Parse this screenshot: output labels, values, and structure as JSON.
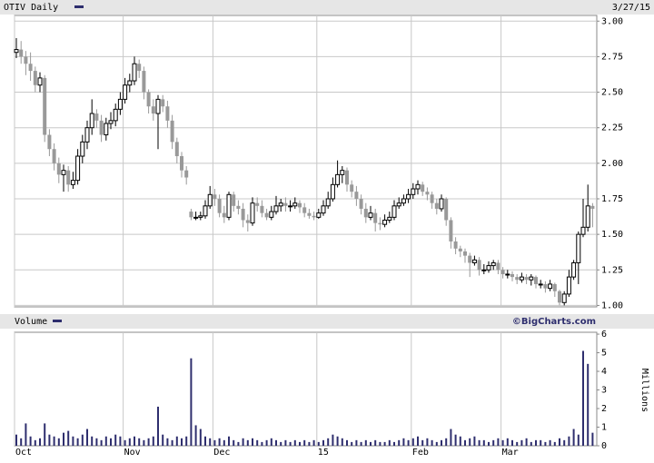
{
  "chart_data": [
    {
      "type": "candlestick",
      "title": "OTIV Daily",
      "date": "3/27/15",
      "open": [
        2.78,
        2.8,
        2.75,
        2.7,
        2.65,
        2.55,
        2.6,
        2.2,
        2.1,
        2.0,
        1.92,
        1.95,
        1.85,
        1.88,
        2.05,
        2.15,
        2.25,
        2.35,
        2.3,
        2.2,
        2.28,
        2.3,
        2.38,
        2.45,
        2.55,
        2.58,
        2.7,
        2.65,
        2.5,
        2.4,
        2.35,
        2.45,
        2.4,
        2.3,
        2.15,
        2.05,
        1.95,
        1.66,
        1.62,
        1.62,
        1.63,
        1.7,
        1.78,
        1.75,
        1.65,
        1.62,
        1.78,
        1.7,
        1.68,
        1.6,
        1.58,
        1.72,
        1.7,
        1.65,
        1.62,
        1.66,
        1.7,
        1.72,
        1.7,
        1.7,
        1.72,
        1.69,
        1.65,
        1.63,
        1.62,
        1.65,
        1.7,
        1.75,
        1.85,
        1.92,
        1.95,
        1.85,
        1.8,
        1.75,
        1.68,
        1.62,
        1.65,
        1.58,
        1.57,
        1.6,
        1.62,
        1.7,
        1.72,
        1.75,
        1.78,
        1.82,
        1.85,
        1.8,
        1.78,
        1.72,
        1.68,
        1.75,
        1.6,
        1.45,
        1.4,
        1.38,
        1.35,
        1.3,
        1.32,
        1.25,
        1.25,
        1.28,
        1.3,
        1.25,
        1.22,
        1.22,
        1.2,
        1.18,
        1.2,
        1.18,
        1.2,
        1.15,
        1.15,
        1.12,
        1.15,
        1.1,
        1.02,
        1.08,
        1.2,
        1.3,
        1.5,
        1.55,
        1.7
      ],
      "high": [
        2.88,
        2.86,
        2.79,
        2.78,
        2.68,
        2.64,
        2.62,
        2.24,
        2.14,
        2.04,
        1.99,
        1.98,
        1.94,
        2.1,
        2.2,
        2.3,
        2.45,
        2.38,
        2.34,
        2.32,
        2.36,
        2.42,
        2.5,
        2.6,
        2.63,
        2.75,
        2.73,
        2.68,
        2.52,
        2.45,
        2.48,
        2.48,
        2.44,
        2.34,
        2.18,
        2.08,
        1.98,
        1.68,
        1.66,
        1.66,
        1.74,
        1.84,
        1.82,
        1.78,
        1.7,
        1.8,
        1.8,
        1.74,
        1.72,
        1.64,
        1.76,
        1.76,
        1.74,
        1.68,
        1.7,
        1.77,
        1.75,
        1.76,
        1.74,
        1.76,
        1.74,
        1.72,
        1.68,
        1.66,
        1.68,
        1.74,
        1.8,
        1.9,
        2.02,
        1.98,
        1.97,
        1.88,
        1.84,
        1.78,
        1.72,
        1.7,
        1.68,
        1.62,
        1.64,
        1.66,
        1.74,
        1.76,
        1.78,
        1.82,
        1.86,
        1.88,
        1.87,
        1.83,
        1.8,
        1.75,
        1.78,
        1.76,
        1.62,
        1.48,
        1.42,
        1.4,
        1.37,
        1.35,
        1.34,
        1.29,
        1.31,
        1.32,
        1.32,
        1.27,
        1.25,
        1.24,
        1.22,
        1.23,
        1.22,
        1.22,
        1.21,
        1.18,
        1.17,
        1.18,
        1.16,
        1.11,
        1.1,
        1.25,
        1.32,
        1.52,
        1.75,
        1.85,
        1.72
      ],
      "low": [
        2.74,
        2.7,
        2.62,
        2.58,
        2.5,
        2.5,
        2.15,
        2.05,
        1.95,
        1.86,
        1.8,
        1.8,
        1.82,
        1.85,
        2.0,
        2.1,
        2.2,
        2.25,
        2.15,
        2.16,
        2.24,
        2.26,
        2.34,
        2.42,
        2.5,
        2.55,
        2.6,
        2.45,
        2.35,
        2.3,
        2.1,
        2.36,
        2.25,
        2.1,
        2.0,
        1.9,
        1.85,
        1.6,
        1.6,
        1.6,
        1.61,
        1.68,
        1.7,
        1.62,
        1.58,
        1.6,
        1.66,
        1.64,
        1.55,
        1.52,
        1.56,
        1.66,
        1.62,
        1.6,
        1.6,
        1.64,
        1.66,
        1.66,
        1.66,
        1.68,
        1.65,
        1.62,
        1.61,
        1.6,
        1.61,
        1.63,
        1.68,
        1.73,
        1.83,
        1.86,
        1.8,
        1.76,
        1.7,
        1.64,
        1.58,
        1.6,
        1.52,
        1.53,
        1.55,
        1.58,
        1.6,
        1.68,
        1.7,
        1.72,
        1.75,
        1.78,
        1.77,
        1.74,
        1.68,
        1.64,
        1.66,
        1.56,
        1.4,
        1.36,
        1.34,
        1.3,
        1.2,
        1.28,
        1.21,
        1.22,
        1.23,
        1.25,
        1.22,
        1.19,
        1.19,
        1.17,
        1.15,
        1.16,
        1.15,
        1.14,
        1.12,
        1.12,
        1.09,
        1.1,
        1.06,
        1.0,
        1.0,
        1.06,
        1.18,
        1.15,
        1.48,
        1.52,
        1.55
      ],
      "close": [
        2.8,
        2.75,
        2.7,
        2.65,
        2.55,
        2.6,
        2.2,
        2.1,
        2.0,
        1.92,
        1.95,
        1.85,
        1.88,
        2.05,
        2.15,
        2.25,
        2.35,
        2.3,
        2.2,
        2.28,
        2.3,
        2.38,
        2.45,
        2.55,
        2.58,
        2.7,
        2.65,
        2.5,
        2.4,
        2.35,
        2.45,
        2.4,
        2.3,
        2.15,
        2.05,
        1.95,
        1.9,
        1.62,
        1.62,
        1.63,
        1.7,
        1.78,
        1.75,
        1.65,
        1.62,
        1.78,
        1.7,
        1.68,
        1.6,
        1.58,
        1.72,
        1.7,
        1.65,
        1.62,
        1.66,
        1.7,
        1.72,
        1.7,
        1.7,
        1.72,
        1.69,
        1.65,
        1.63,
        1.62,
        1.65,
        1.7,
        1.75,
        1.85,
        1.92,
        1.95,
        1.85,
        1.8,
        1.75,
        1.68,
        1.62,
        1.65,
        1.58,
        1.57,
        1.6,
        1.62,
        1.7,
        1.72,
        1.75,
        1.78,
        1.82,
        1.85,
        1.8,
        1.78,
        1.72,
        1.68,
        1.75,
        1.6,
        1.45,
        1.4,
        1.38,
        1.35,
        1.3,
        1.32,
        1.25,
        1.25,
        1.28,
        1.3,
        1.25,
        1.22,
        1.22,
        1.2,
        1.18,
        1.2,
        1.18,
        1.2,
        1.15,
        1.15,
        1.12,
        1.15,
        1.1,
        1.02,
        1.08,
        1.2,
        1.3,
        1.5,
        1.55,
        1.7,
        1.68
      ],
      "up_color": "#ffffff",
      "down_color": "#999999",
      "edge_color": "#000000",
      "ylim": [
        0.99,
        3.04
      ],
      "yticks": [
        {
          "value": 1,
          "label": "1.00"
        },
        {
          "value": 1.25,
          "label": "1.25"
        },
        {
          "value": 1.5,
          "label": "1.50"
        },
        {
          "value": 1.75,
          "label": "1.75"
        },
        {
          "value": 2,
          "label": "2.00"
        },
        {
          "value": 2.25,
          "label": "2.25"
        },
        {
          "value": 2.5,
          "label": "2.50"
        },
        {
          "value": 2.75,
          "label": "2.75"
        },
        {
          "value": 3,
          "label": "3.00"
        }
      ],
      "grid": true
    },
    {
      "type": "bar",
      "title": "Volume",
      "source": "©BigCharts.com",
      "ylabel": "Millions",
      "color": "#2e2e6e",
      "categories": [
        "Oct",
        null,
        null,
        null,
        null,
        null,
        null,
        null,
        null,
        null,
        null,
        null,
        null,
        null,
        null,
        null,
        null,
        null,
        null,
        null,
        null,
        null,
        null,
        "Nov",
        null,
        null,
        null,
        null,
        null,
        null,
        null,
        null,
        null,
        null,
        null,
        null,
        null,
        null,
        null,
        null,
        null,
        null,
        "Dec",
        null,
        null,
        null,
        null,
        null,
        null,
        null,
        null,
        null,
        null,
        null,
        null,
        null,
        null,
        null,
        null,
        null,
        null,
        null,
        null,
        null,
        "15",
        null,
        null,
        null,
        null,
        null,
        null,
        null,
        null,
        null,
        null,
        null,
        null,
        null,
        null,
        null,
        null,
        null,
        null,
        null,
        "Feb",
        null,
        null,
        null,
        null,
        null,
        null,
        null,
        null,
        null,
        null,
        null,
        null,
        null,
        null,
        null,
        null,
        null,
        null,
        "Mar",
        null,
        null,
        null,
        null,
        null,
        null,
        null,
        null,
        null,
        null,
        null,
        null,
        null,
        null,
        null,
        null,
        null,
        null,
        null
      ],
      "values": [
        0.6,
        0.4,
        1.2,
        0.5,
        0.3,
        0.4,
        1.2,
        0.6,
        0.5,
        0.4,
        0.7,
        0.8,
        0.5,
        0.4,
        0.6,
        0.9,
        0.5,
        0.4,
        0.3,
        0.5,
        0.4,
        0.6,
        0.5,
        0.3,
        0.4,
        0.5,
        0.4,
        0.3,
        0.4,
        0.5,
        2.1,
        0.6,
        0.4,
        0.3,
        0.5,
        0.4,
        0.5,
        4.7,
        1.1,
        0.9,
        0.5,
        0.4,
        0.3,
        0.4,
        0.3,
        0.5,
        0.3,
        0.2,
        0.4,
        0.3,
        0.4,
        0.3,
        0.2,
        0.3,
        0.4,
        0.3,
        0.2,
        0.3,
        0.2,
        0.3,
        0.2,
        0.3,
        0.2,
        0.3,
        0.2,
        0.3,
        0.4,
        0.6,
        0.5,
        0.4,
        0.3,
        0.2,
        0.3,
        0.2,
        0.3,
        0.2,
        0.3,
        0.2,
        0.2,
        0.3,
        0.2,
        0.3,
        0.4,
        0.3,
        0.4,
        0.5,
        0.3,
        0.4,
        0.3,
        0.2,
        0.3,
        0.4,
        0.9,
        0.6,
        0.5,
        0.3,
        0.4,
        0.5,
        0.3,
        0.3,
        0.2,
        0.3,
        0.4,
        0.3,
        0.4,
        0.3,
        0.2,
        0.3,
        0.4,
        0.2,
        0.3,
        0.3,
        0.2,
        0.3,
        0.2,
        0.4,
        0.3,
        0.5,
        0.9,
        0.6,
        5.1,
        4.4,
        0.7
      ],
      "ylim": [
        0,
        6.1
      ],
      "yticks": [
        0,
        1,
        2,
        3,
        4,
        5,
        6
      ],
      "grid": "x"
    }
  ]
}
